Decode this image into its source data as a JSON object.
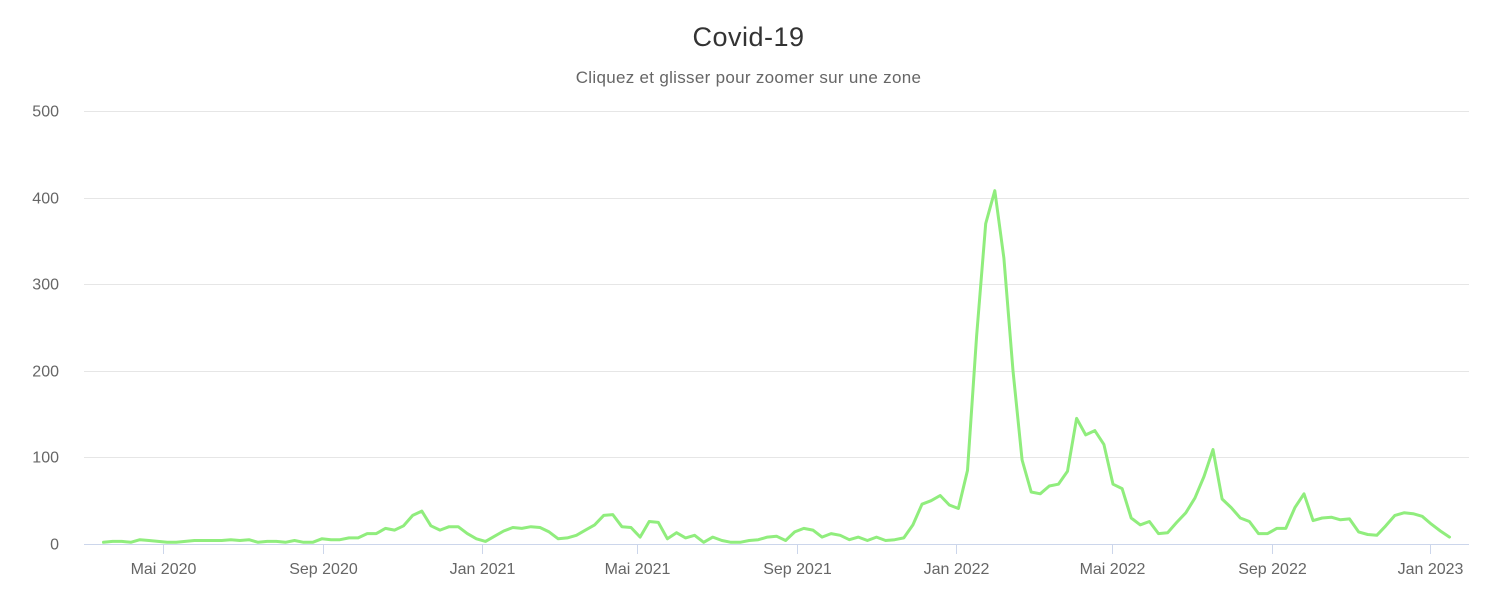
{
  "chart_data": {
    "type": "line",
    "title": "Covid-19",
    "subtitle": "Cliquez et glisser pour zoomer sur une zone",
    "xlabel": "",
    "ylabel": "",
    "ylim": [
      0,
      500
    ],
    "yticks": [
      0,
      100,
      200,
      300,
      400,
      500
    ],
    "xlim": [
      "2020-03-01",
      "2023-01-31"
    ],
    "xticks": [
      {
        "date": "2020-05-01",
        "label": "Mai 2020"
      },
      {
        "date": "2020-09-01",
        "label": "Sep 2020"
      },
      {
        "date": "2021-01-01",
        "label": "Jan 2021"
      },
      {
        "date": "2021-05-01",
        "label": "Mai 2021"
      },
      {
        "date": "2021-09-01",
        "label": "Sep 2021"
      },
      {
        "date": "2022-01-01",
        "label": "Jan 2022"
      },
      {
        "date": "2022-05-01",
        "label": "Mai 2022"
      },
      {
        "date": "2022-09-01",
        "label": "Sep 2022"
      },
      {
        "date": "2023-01-01",
        "label": "Jan 2023"
      }
    ],
    "grid": true,
    "legend": "none",
    "series": [
      {
        "color": "#90ed7d",
        "x": [
          "2020-03-16",
          "2020-03-23",
          "2020-03-30",
          "2020-04-06",
          "2020-04-13",
          "2020-04-20",
          "2020-04-27",
          "2020-05-04",
          "2020-05-11",
          "2020-05-18",
          "2020-05-25",
          "2020-06-01",
          "2020-06-08",
          "2020-06-15",
          "2020-06-22",
          "2020-06-29",
          "2020-07-06",
          "2020-07-13",
          "2020-07-20",
          "2020-07-27",
          "2020-08-03",
          "2020-08-10",
          "2020-08-17",
          "2020-08-24",
          "2020-08-31",
          "2020-09-07",
          "2020-09-14",
          "2020-09-21",
          "2020-09-28",
          "2020-10-05",
          "2020-10-12",
          "2020-10-19",
          "2020-10-26",
          "2020-11-02",
          "2020-11-09",
          "2020-11-16",
          "2020-11-23",
          "2020-11-30",
          "2020-12-07",
          "2020-12-14",
          "2020-12-21",
          "2020-12-28",
          "2021-01-04",
          "2021-01-11",
          "2021-01-18",
          "2021-01-25",
          "2021-02-01",
          "2021-02-08",
          "2021-02-15",
          "2021-02-22",
          "2021-03-01",
          "2021-03-08",
          "2021-03-15",
          "2021-03-22",
          "2021-03-29",
          "2021-04-05",
          "2021-04-12",
          "2021-04-19",
          "2021-04-26",
          "2021-05-03",
          "2021-05-10",
          "2021-05-17",
          "2021-05-24",
          "2021-05-31",
          "2021-06-07",
          "2021-06-14",
          "2021-06-21",
          "2021-06-28",
          "2021-07-05",
          "2021-07-12",
          "2021-07-19",
          "2021-07-26",
          "2021-08-02",
          "2021-08-09",
          "2021-08-16",
          "2021-08-23",
          "2021-08-30",
          "2021-09-06",
          "2021-09-13",
          "2021-09-20",
          "2021-09-27",
          "2021-10-04",
          "2021-10-11",
          "2021-10-18",
          "2021-10-25",
          "2021-11-01",
          "2021-11-08",
          "2021-11-15",
          "2021-11-22",
          "2021-11-29",
          "2021-12-06",
          "2021-12-13",
          "2021-12-20",
          "2021-12-27",
          "2022-01-03",
          "2022-01-10",
          "2022-01-17",
          "2022-01-24",
          "2022-01-31",
          "2022-02-07",
          "2022-02-14",
          "2022-02-21",
          "2022-02-28",
          "2022-03-07",
          "2022-03-14",
          "2022-03-21",
          "2022-03-28",
          "2022-04-04",
          "2022-04-11",
          "2022-04-18",
          "2022-04-25",
          "2022-05-02",
          "2022-05-09",
          "2022-05-16",
          "2022-05-23",
          "2022-05-30",
          "2022-06-06",
          "2022-06-13",
          "2022-06-20",
          "2022-06-27",
          "2022-07-04",
          "2022-07-11",
          "2022-07-18",
          "2022-07-25",
          "2022-08-01",
          "2022-08-08",
          "2022-08-15",
          "2022-08-22",
          "2022-08-29",
          "2022-09-05",
          "2022-09-12",
          "2022-09-19",
          "2022-09-26",
          "2022-10-03",
          "2022-10-10",
          "2022-10-17",
          "2022-10-24",
          "2022-10-31",
          "2022-11-07",
          "2022-11-14",
          "2022-11-21",
          "2022-11-28",
          "2022-12-05",
          "2022-12-12",
          "2022-12-19",
          "2022-12-26",
          "2023-01-02",
          "2023-01-09",
          "2023-01-16"
        ],
        "values": [
          2,
          3,
          3,
          2,
          5,
          4,
          3,
          2,
          2,
          3,
          4,
          4,
          4,
          4,
          5,
          4,
          5,
          2,
          3,
          3,
          2,
          4,
          2,
          2,
          6,
          5,
          5,
          7,
          7,
          12,
          12,
          18,
          16,
          21,
          33,
          38,
          21,
          16,
          20,
          20,
          12,
          6,
          3,
          9,
          15,
          19,
          18,
          20,
          19,
          14,
          6,
          7,
          10,
          16,
          22,
          33,
          34,
          20,
          19,
          8,
          26,
          25,
          6,
          13,
          7,
          10,
          2,
          8,
          4,
          2,
          2,
          4,
          5,
          8,
          9,
          4,
          14,
          18,
          16,
          8,
          12,
          10,
          5,
          8,
          4,
          8,
          4,
          5,
          7,
          22,
          46,
          50,
          56,
          45,
          41,
          85,
          240,
          370,
          408,
          330,
          200,
          97,
          60,
          58,
          67,
          69,
          84,
          145,
          126,
          131,
          115,
          69,
          64,
          30,
          22,
          26,
          12,
          13,
          25,
          36,
          53,
          78,
          109,
          52,
          42,
          30,
          26,
          12,
          12,
          18,
          18,
          42,
          58,
          27,
          30,
          31,
          28,
          29,
          14,
          11,
          10,
          21,
          33,
          36,
          35,
          32,
          23,
          15,
          8
        ]
      }
    ]
  }
}
